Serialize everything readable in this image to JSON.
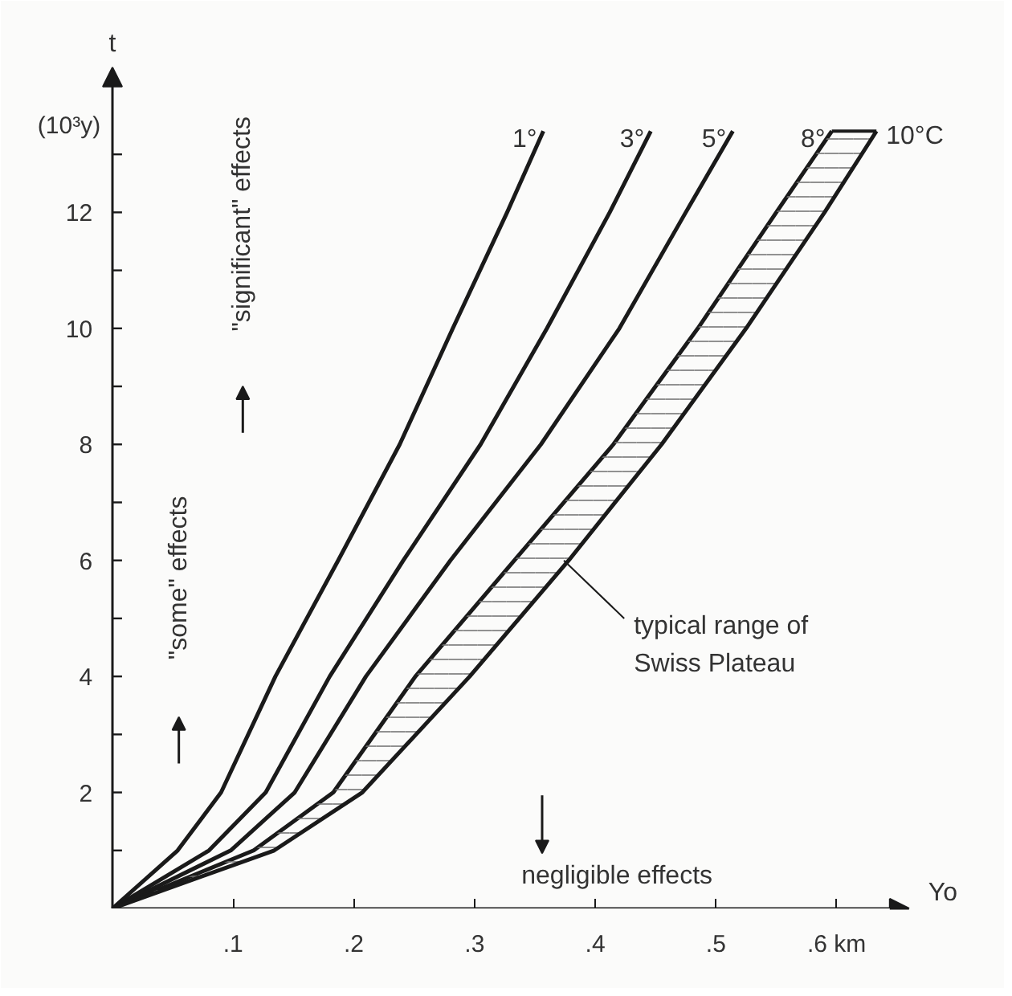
{
  "chart_data": {
    "type": "line",
    "xlabel": "Yo",
    "ylabel": "t",
    "xlim": [
      0,
      0.66
    ],
    "ylim": [
      0,
      14.5
    ],
    "xticks": [
      {
        "value": 0.1,
        "label": ".1"
      },
      {
        "value": 0.2,
        "label": ".2"
      },
      {
        "value": 0.3,
        "label": ".3"
      },
      {
        "value": 0.4,
        "label": ".4"
      },
      {
        "value": 0.5,
        "label": ".5"
      },
      {
        "value": 0.6,
        "label": ".6 km"
      }
    ],
    "yticks": [
      {
        "value": 1,
        "label": null
      },
      2,
      {
        "value": 3,
        "label": null
      },
      4,
      {
        "value": 5,
        "label": null
      },
      6,
      {
        "value": 7,
        "label": null
      },
      8,
      {
        "value": 9,
        "label": null
      },
      10,
      {
        "value": 11,
        "label": null
      },
      12,
      {
        "value": 13,
        "label": null
      }
    ],
    "grid": false,
    "series": [
      {
        "name": "1°",
        "color": "#1a1a1a",
        "x": [
          0,
          0.054,
          0.09,
          0.135,
          0.187,
          0.238,
          0.282,
          0.327,
          0.357
        ],
        "values": [
          0,
          1,
          2,
          4,
          6,
          8,
          10,
          12,
          13.4
        ]
      },
      {
        "name": "3°",
        "color": "#1a1a1a",
        "x": [
          0,
          0.08,
          0.127,
          0.18,
          0.241,
          0.305,
          0.36,
          0.412,
          0.446
        ],
        "values": [
          0,
          1,
          2,
          4,
          6,
          8,
          10,
          12,
          13.4
        ]
      },
      {
        "name": "5°",
        "color": "#1a1a1a",
        "x": [
          0,
          0.098,
          0.151,
          0.21,
          0.28,
          0.355,
          0.42,
          0.475,
          0.514
        ],
        "values": [
          0,
          1,
          2,
          4,
          6,
          8,
          10,
          12,
          13.4
        ]
      },
      {
        "name": "8°",
        "color": "#1a1a1a",
        "x": [
          0,
          0.117,
          0.183,
          0.251,
          0.333,
          0.415,
          0.485,
          0.55,
          0.596
        ],
        "values": [
          0,
          1,
          2,
          4,
          6,
          8,
          10,
          12,
          13.4
        ]
      },
      {
        "name": "10°C",
        "type": "area",
        "color": "#1a1a1a",
        "x": [
          0,
          0.134,
          0.207,
          0.296,
          0.378,
          0.455,
          0.525,
          0.59,
          0.633
        ],
        "values": [
          0,
          1,
          2,
          4,
          6,
          8,
          10,
          12,
          13.4
        ]
      }
    ],
    "annotations": [
      {
        "text": "(10³y)"
      },
      "\"significant\" effects",
      "\"some\" effects",
      "negligible effects",
      {
        "text": "typical range of\nSwiss Plateau",
        "x": 0.374,
        "y": 6.0
      }
    ]
  }
}
